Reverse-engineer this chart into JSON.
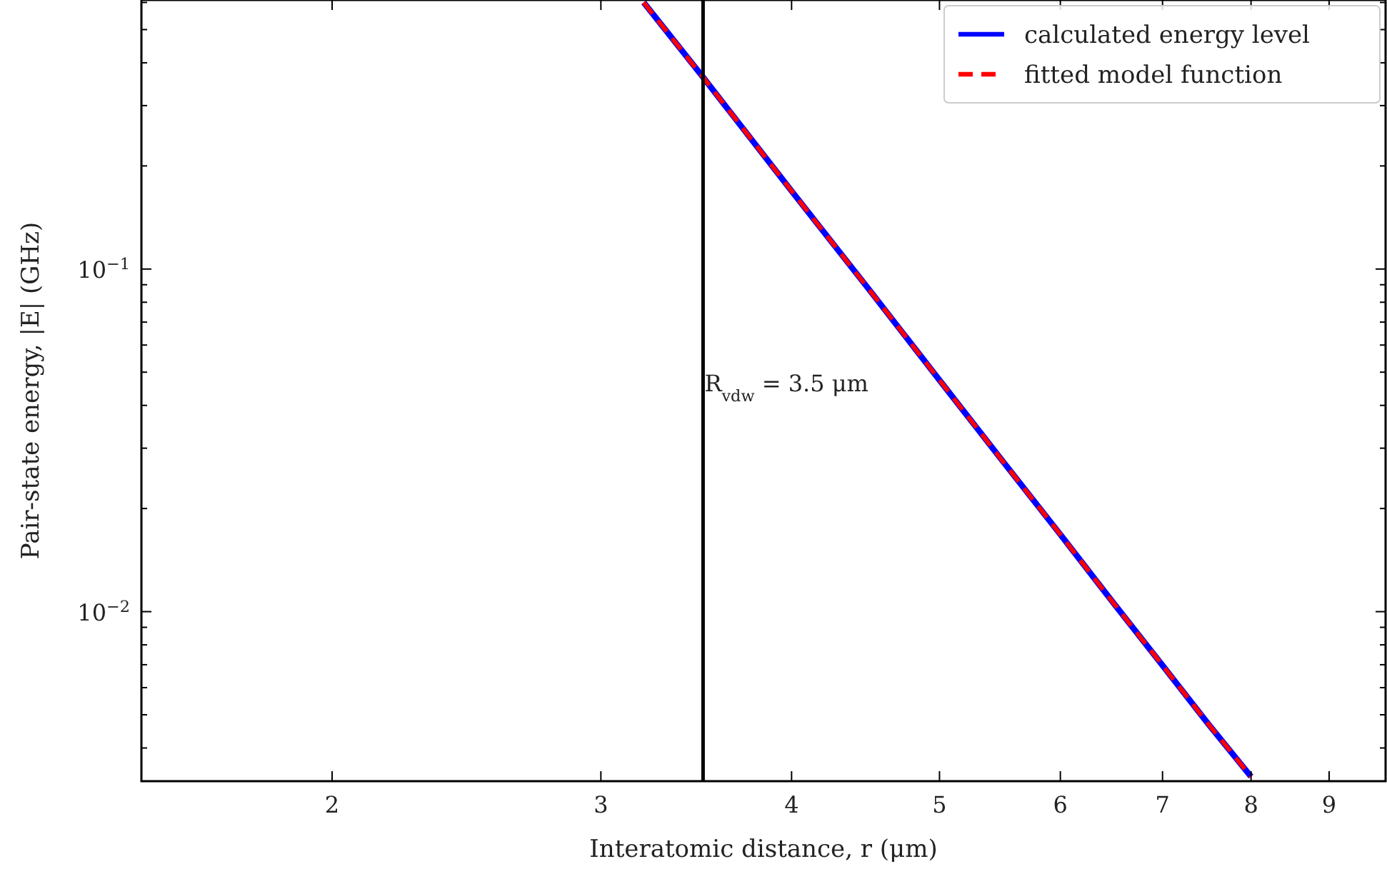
{
  "chart_data": {
    "type": "line",
    "xlabel": "Interatomic distance, r (μm)",
    "ylabel": "Pair-state energy, |E| (GHz)",
    "x": [
      3.2,
      3.5,
      4,
      4.5,
      5,
      5.5,
      6,
      6.5,
      7,
      7.5,
      8
    ],
    "series": [
      {
        "name": "calculated energy level",
        "color": "#0000ff",
        "line_style": "solid",
        "values": [
          0.6,
          0.363,
          0.169,
          0.0867,
          0.0474,
          0.0275,
          0.0168,
          0.0106,
          0.00697,
          0.0047,
          0.0033
        ]
      },
      {
        "name": "fitted model function",
        "color": "#ff0000",
        "line_style": "dashed",
        "values": [
          0.6,
          0.363,
          0.169,
          0.0867,
          0.0474,
          0.0275,
          0.0168,
          0.0106,
          0.00697,
          0.0047,
          0.0033
        ]
      }
    ],
    "log": "xy",
    "xlim": [
      1.5,
      9.8
    ],
    "ylim": [
      0.0032,
      0.61
    ],
    "xticks": [
      2,
      3,
      4,
      5,
      6,
      7,
      8,
      9
    ],
    "yticks": [
      {
        "value": 0.004,
        "label": null
      },
      {
        "value": 0.005,
        "label": null
      },
      {
        "value": 0.006,
        "label": null
      },
      {
        "value": 0.007,
        "label": null
      },
      {
        "value": 0.008,
        "label": null
      },
      {
        "value": 0.009,
        "label": null
      },
      {
        "value": 0.01,
        "label": "10$^{−2}$"
      },
      {
        "value": 0.02,
        "label": null
      },
      {
        "value": 0.03,
        "label": null
      },
      {
        "value": 0.04,
        "label": null
      },
      {
        "value": 0.05,
        "label": null
      },
      {
        "value": 0.06,
        "label": null
      },
      {
        "value": 0.07,
        "label": null
      },
      {
        "value": 0.08,
        "label": null
      },
      {
        "value": 0.09,
        "label": null
      },
      {
        "value": 0.1,
        "label": "10$^{−1}$"
      },
      {
        "value": 0.2,
        "label": null
      },
      {
        "value": 0.3,
        "label": null
      },
      {
        "value": 0.4,
        "label": null
      },
      {
        "value": 0.5,
        "label": null
      },
      {
        "value": 0.6,
        "label": null
      }
    ],
    "ref_lines": [
      {
        "axis": "x",
        "value": 3.5,
        "label": "R$_{vdw}$ = 3.5 μm",
        "color": "#000000"
      }
    ],
    "grid": false,
    "legend": "top right",
    "marker": "none"
  }
}
